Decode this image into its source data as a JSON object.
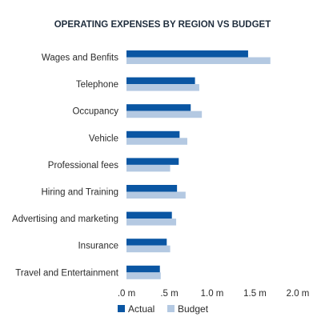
{
  "chart_data": {
    "type": "bar",
    "orientation": "horizontal",
    "title": "OPERATING EXPENSES BY REGION VS BUDGET",
    "categories": [
      "Wages and Benfits",
      "Telephone",
      "Occupancy",
      "Vehicle",
      "Professional fees",
      "Hiring and Training",
      "Advertising and marketing",
      "Insurance",
      "Travel and Entertainment"
    ],
    "series": [
      {
        "name": "Actual",
        "color": "#0a56a3",
        "values": [
          1.42,
          0.8,
          0.75,
          0.62,
          0.61,
          0.59,
          0.53,
          0.47,
          0.39
        ]
      },
      {
        "name": "Budget",
        "color": "#b4c9e2",
        "values": [
          1.68,
          0.85,
          0.88,
          0.71,
          0.51,
          0.69,
          0.58,
          0.51,
          0.4
        ]
      }
    ],
    "xlim": [
      0,
      2.0
    ],
    "xticks": [
      {
        "value": 0,
        "label": ".0 m"
      },
      {
        "value": 0.5,
        "label": ".5 m"
      },
      {
        "value": 1.0,
        "label": "1.0 m"
      },
      {
        "value": 1.5,
        "label": "1.5 m"
      },
      {
        "value": 2.0,
        "label": "2.0 m"
      }
    ],
    "grid": false,
    "legend_position": "bottom"
  }
}
